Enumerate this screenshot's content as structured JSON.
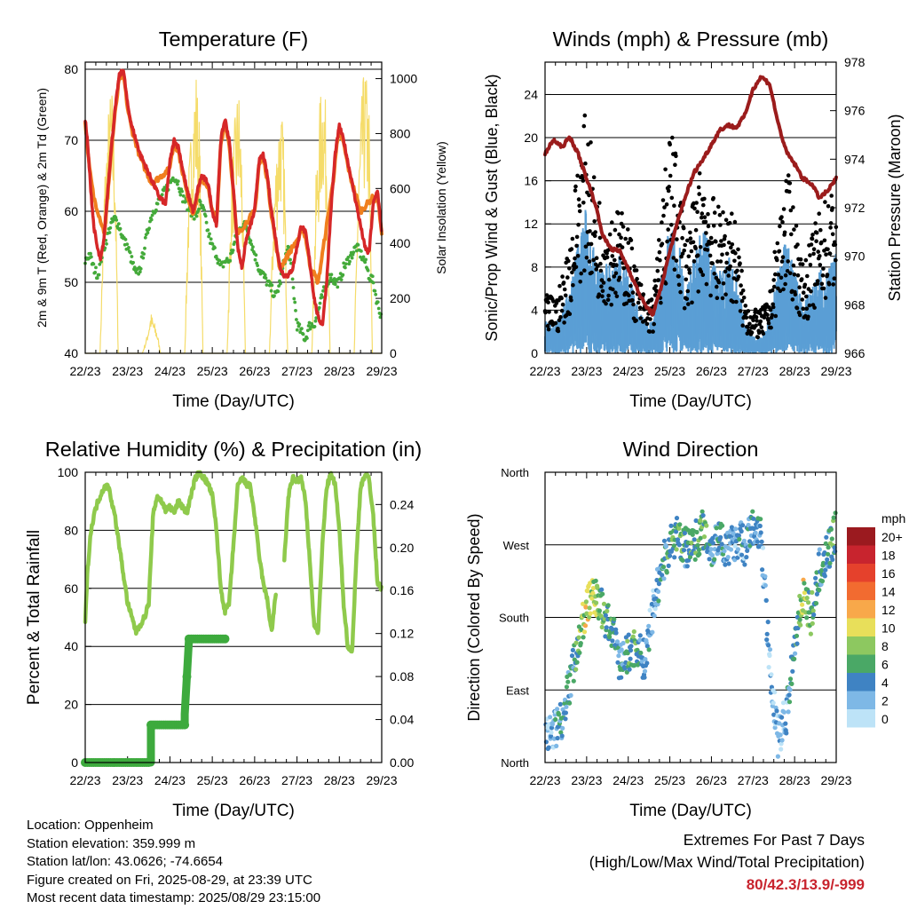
{
  "chart_data": [
    {
      "type": "line",
      "title": "Temperature (F)",
      "xlabel": "Time (Day/UTC)",
      "ylabel": "2m & 9m T (Red, Orange) & 2m Td (Green)",
      "y2label": "Solar Insolation (Yellow)",
      "x_ticks": [
        "22/23",
        "23/23",
        "24/23",
        "25/23",
        "26/23",
        "27/23",
        "28/23",
        "29/23"
      ],
      "xlim": [
        0,
        7
      ],
      "ylim": [
        40,
        81
      ],
      "y_ticks": [
        40,
        50,
        60,
        70,
        80
      ],
      "y2lim": [
        0,
        1060
      ],
      "y2_ticks": [
        0,
        200,
        400,
        600,
        800,
        1000
      ],
      "grid": "horizontal",
      "colors": {
        "t2m": "#d62728",
        "t9m": "#f07f1e",
        "td": "#44aa3a",
        "solar": "#f5dc6a"
      },
      "series": [
        {
          "axis": "left",
          "values_x": [
            0,
            0.05,
            0.12,
            0.2,
            0.28,
            0.36,
            0.44,
            0.52,
            0.6,
            0.7,
            0.8,
            0.9,
            1.0,
            1.1,
            1.2,
            1.3,
            1.45,
            1.6,
            1.75,
            1.9,
            2.0,
            2.1,
            2.2,
            2.3,
            2.4,
            2.5,
            2.55,
            2.6,
            2.65,
            2.75,
            2.9,
            3.0,
            3.1,
            3.2,
            3.3,
            3.4,
            3.5,
            3.6,
            3.7,
            3.8,
            3.9,
            4.0,
            4.1,
            4.2,
            4.3,
            4.4,
            4.5,
            4.6,
            4.7,
            4.8,
            4.9,
            5.0,
            5.1,
            5.2,
            5.3,
            5.4,
            5.5,
            5.6,
            5.7,
            5.8,
            5.9,
            6.0,
            6.1,
            6.2,
            6.3,
            6.4,
            6.5,
            6.6,
            6.7,
            6.8,
            6.9,
            7.0
          ],
          "values": [
            73,
            70,
            64,
            58,
            55,
            53,
            56,
            62,
            68,
            74,
            79,
            80,
            75,
            72,
            70,
            68,
            66,
            64,
            62,
            61,
            67,
            70,
            69,
            66,
            63,
            61,
            60,
            61,
            63,
            65,
            64,
            60,
            58,
            70,
            73,
            70,
            63,
            55,
            52,
            56,
            58,
            60,
            67,
            68,
            65,
            60,
            56,
            52,
            51,
            51,
            52,
            55,
            58,
            57,
            53,
            48,
            45,
            44,
            50,
            60,
            68,
            72,
            70,
            67,
            64,
            61,
            58,
            55,
            54,
            61,
            63,
            57
          ]
        },
        {
          "axis": "left",
          "values_x": [
            0,
            0.1,
            0.2,
            0.3,
            0.4,
            0.5,
            0.6,
            1.6,
            2.0,
            2.5,
            3.0,
            3.5,
            4.0,
            4.5,
            5.0,
            5.5,
            6.0,
            6.5,
            6.8,
            7.0
          ],
          "values": [
            72,
            66,
            62,
            60,
            58,
            56,
            62,
            64,
            66,
            60,
            60,
            56,
            60,
            51,
            56,
            50,
            70,
            60,
            62,
            57
          ]
        },
        {
          "axis": "left",
          "values_x": [
            0,
            0.1,
            0.2,
            0.3,
            0.4,
            0.5,
            0.6,
            0.7,
            0.8,
            0.9,
            1.0,
            1.1,
            1.2,
            1.3,
            1.4,
            1.5,
            1.6,
            1.7,
            1.8,
            1.9,
            2.0,
            2.1,
            2.2,
            2.3,
            2.4,
            2.5,
            2.6,
            2.7,
            2.8,
            2.9,
            3.0,
            3.1,
            3.2,
            3.3,
            3.4,
            3.5,
            3.6,
            3.7,
            3.8,
            3.9,
            4.0,
            4.1,
            4.2,
            4.3,
            4.4,
            4.5,
            4.6,
            4.7,
            4.8,
            4.9,
            5.0,
            5.1,
            5.2,
            5.3,
            5.4,
            5.5,
            5.6,
            5.7,
            5.8,
            5.9,
            6.0,
            6.1,
            6.2,
            6.3,
            6.4,
            6.5,
            6.6,
            6.7,
            6.8,
            6.9,
            7.0
          ],
          "values": [
            53,
            54,
            52,
            51,
            54,
            56,
            58,
            59,
            58,
            56,
            55,
            53,
            51,
            52,
            55,
            58,
            60,
            61,
            62,
            63,
            64,
            65,
            64,
            62,
            61,
            60,
            59,
            61,
            60,
            57,
            55,
            54,
            52,
            53,
            53,
            55,
            57,
            58,
            58,
            56,
            54,
            52,
            51,
            50,
            49,
            48,
            50,
            53,
            55,
            50,
            44,
            43,
            42,
            44,
            44,
            46,
            48,
            50,
            51,
            50,
            50,
            52,
            53,
            54,
            55,
            54,
            53,
            51,
            50,
            47,
            45
          ]
        },
        {
          "axis": "right",
          "values_x": [
            0,
            0.35,
            0.45,
            0.55,
            0.62,
            0.7,
            0.78,
            1.0,
            1.35,
            1.45,
            1.55,
            1.62,
            1.7,
            1.78,
            2.0,
            2.35,
            2.45,
            2.55,
            2.62,
            2.7,
            2.78,
            3.0,
            3.35,
            3.45,
            3.55,
            3.62,
            3.7,
            3.78,
            4.0,
            4.35,
            4.45,
            4.55,
            4.62,
            4.7,
            4.78,
            5.0,
            5.35,
            5.45,
            5.55,
            5.62,
            5.7,
            5.78,
            6.0,
            6.35,
            6.45,
            6.55,
            6.62,
            6.7,
            6.78,
            7.0
          ],
          "values": [
            0,
            0,
            650,
            900,
            1000,
            800,
            0,
            0,
            0,
            60,
            150,
            120,
            80,
            0,
            0,
            0,
            700,
            950,
            1050,
            850,
            0,
            0,
            0,
            650,
            900,
            1000,
            750,
            0,
            0,
            0,
            600,
            850,
            950,
            750,
            0,
            0,
            0,
            650,
            950,
            1050,
            850,
            0,
            0,
            0,
            700,
            1000,
            1050,
            900,
            0,
            0
          ]
        }
      ]
    },
    {
      "type": "scatter",
      "title": "Winds (mph) & Pressure (mb)",
      "xlabel": "Time (Day/UTC)",
      "ylabel": "Sonic/Prop Wind & Gust (Blue, Black)",
      "y2label": "Station Pressure (Maroon)",
      "x_ticks": [
        "22/23",
        "23/23",
        "24/23",
        "25/23",
        "26/23",
        "27/23",
        "28/23",
        "29/23"
      ],
      "xlim": [
        0,
        7
      ],
      "ylim": [
        0,
        27
      ],
      "y_ticks": [
        0,
        4,
        8,
        12,
        16,
        20,
        24
      ],
      "y2lim": [
        966,
        978
      ],
      "y2_ticks": [
        966,
        968,
        970,
        972,
        974,
        976,
        978
      ],
      "grid": "horizontal",
      "colors": {
        "wind": "#5b9fd5",
        "gust": "#000000",
        "pressure": "#9b1c1c"
      },
      "wind_profile": {
        "x": [
          0,
          0.3,
          0.6,
          0.8,
          1.0,
          1.2,
          1.4,
          1.6,
          1.8,
          2.0,
          2.2,
          2.4,
          2.6,
          2.8,
          3.0,
          3.2,
          3.4,
          3.6,
          3.8,
          4.0,
          4.2,
          4.4,
          4.6,
          4.8,
          5.0,
          5.2,
          5.4,
          5.6,
          5.8,
          6.0,
          6.2,
          6.4,
          6.6,
          6.8,
          7.0
        ],
        "values": [
          2,
          2,
          4,
          7,
          9,
          6,
          5,
          6,
          6,
          5,
          3,
          2,
          2,
          5,
          8,
          7,
          4,
          6,
          8,
          6,
          5,
          6,
          5,
          2,
          1,
          1,
          2,
          5,
          7,
          5,
          3,
          4,
          5,
          5,
          6
        ]
      },
      "gust_profile": {
        "x": [
          0,
          0.3,
          0.6,
          0.8,
          1.0,
          1.2,
          1.4,
          1.6,
          1.8,
          2.0,
          2.2,
          2.4,
          2.6,
          2.8,
          3.0,
          3.2,
          3.4,
          3.6,
          3.8,
          4.0,
          4.2,
          4.4,
          4.6,
          4.8,
          5.0,
          5.2,
          5.4,
          5.6,
          5.8,
          6.0,
          6.2,
          6.4,
          6.6,
          6.8,
          7.0
        ],
        "values": [
          4,
          4,
          8,
          14,
          17,
          12,
          10,
          10,
          10,
          9,
          6,
          4,
          4,
          10,
          16,
          13,
          8,
          11,
          14,
          11,
          10,
          11,
          9,
          4,
          3,
          3,
          4,
          9,
          13,
          10,
          6,
          8,
          10,
          11,
          12
        ]
      },
      "pressure": {
        "x": [
          0,
          0.2,
          0.4,
          0.6,
          0.8,
          1.0,
          1.2,
          1.4,
          1.6,
          1.8,
          2.0,
          2.2,
          2.4,
          2.6,
          2.8,
          3.0,
          3.2,
          3.4,
          3.6,
          3.8,
          4.0,
          4.2,
          4.4,
          4.6,
          4.8,
          5.0,
          5.2,
          5.4,
          5.6,
          5.8,
          6.0,
          6.2,
          6.4,
          6.6,
          6.8,
          7.0
        ],
        "values": [
          974.2,
          974.8,
          974.5,
          974.9,
          974.2,
          973.2,
          972.2,
          970.8,
          970.3,
          970.2,
          969.5,
          968.7,
          968.0,
          967.6,
          968.8,
          970.2,
          971.5,
          972.6,
          973.5,
          974.0,
          974.6,
          975.2,
          975.4,
          975.3,
          975.8,
          976.9,
          977.4,
          977.1,
          975.5,
          974.3,
          973.8,
          973.2,
          973.0,
          972.4,
          972.7,
          973.2
        ]
      },
      "series": []
    },
    {
      "type": "line",
      "title": "Relative Humidity (%) & Precipitation (in)",
      "xlabel": "Time (Day/UTC)",
      "ylabel": "Percent & Total Rainfall",
      "x_ticks": [
        "22/23",
        "23/23",
        "24/23",
        "25/23",
        "26/23",
        "27/23",
        "28/23",
        "29/23"
      ],
      "xlim": [
        0,
        7
      ],
      "ylim": [
        0,
        100
      ],
      "y_ticks": [
        0,
        20,
        40,
        60,
        80,
        100
      ],
      "y2lim": [
        0,
        0.27
      ],
      "y2_ticks": [
        "0.00",
        "0.04",
        "0.08",
        "0.12",
        "0.16",
        "0.20",
        "0.24"
      ],
      "grid": "horizontal",
      "colors": {
        "rh": "#8fca4c",
        "precip": "#3daa3d"
      },
      "series": [
        {
          "axis": "left",
          "values_x": [
            0,
            0.05,
            0.12,
            0.2,
            0.3,
            0.45,
            0.55,
            0.7,
            0.85,
            1.0,
            1.2,
            1.4,
            1.5,
            1.55,
            1.6,
            1.7,
            1.8,
            1.9,
            2.0,
            2.1,
            2.2,
            2.3,
            2.4,
            2.5,
            2.6,
            2.7,
            2.8,
            2.9,
            3.0,
            3.1,
            3.2,
            3.3,
            3.4,
            3.5,
            3.6,
            3.7,
            3.8,
            3.9,
            4.0,
            4.1,
            4.2,
            4.3,
            4.4,
            4.5
          ],
          "values": [
            48,
            65,
            78,
            85,
            90,
            95,
            95,
            85,
            70,
            55,
            45,
            50,
            55,
            70,
            85,
            92,
            90,
            87,
            88,
            86,
            90,
            88,
            86,
            92,
            98,
            100,
            98,
            96,
            92,
            80,
            60,
            52,
            55,
            75,
            95,
            98,
            96,
            95,
            85,
            72,
            62,
            56,
            45,
            58
          ]
        },
        {
          "axis": "left",
          "values_x": [
            4.7,
            4.8,
            4.9,
            5.0,
            5.1,
            5.2,
            5.3,
            5.4,
            5.5,
            5.6,
            5.7,
            5.8,
            5.9,
            6.0,
            6.1,
            6.2,
            6.3,
            6.4,
            6.5,
            6.6,
            6.7,
            6.8,
            6.9,
            7.0
          ],
          "values": [
            70,
            92,
            98,
            97,
            98,
            90,
            70,
            48,
            45,
            75,
            95,
            99,
            96,
            80,
            55,
            40,
            38,
            70,
            95,
            99,
            98,
            85,
            62,
            60
          ]
        },
        {
          "axis": "right",
          "step": true,
          "values_x": [
            0,
            1.55,
            1.55,
            2.35,
            2.35,
            2.4,
            2.45,
            3.3
          ],
          "values": [
            0.0,
            0.0,
            0.035,
            0.035,
            0.045,
            0.08,
            0.115,
            0.115
          ]
        }
      ]
    },
    {
      "type": "scatter",
      "title": "Wind Direction",
      "xlabel": "Time (Day/UTC)",
      "ylabel": "Direction (Colored By Speed)",
      "x_ticks": [
        "22/23",
        "23/23",
        "24/23",
        "25/23",
        "26/23",
        "27/23",
        "28/23",
        "29/23"
      ],
      "xlim": [
        0,
        7
      ],
      "ylim": [
        0,
        360
      ],
      "y_ticks": [
        "North",
        "East",
        "South",
        "West",
        "North"
      ],
      "grid": "horizontal",
      "legend": {
        "title": "mph",
        "labels": [
          "20+",
          "18",
          "16",
          "14",
          "12",
          "10",
          "8",
          "6",
          "4",
          "2",
          "0"
        ],
        "colors": [
          "#9b1a1f",
          "#c8242e",
          "#e5412c",
          "#f26b30",
          "#f8a84a",
          "#e8df5a",
          "#8dc860",
          "#4aa866",
          "#3f83c3",
          "#7eb8e6",
          "#bde3f7"
        ]
      },
      "direction_profile": {
        "x": [
          0,
          0.2,
          0.4,
          0.6,
          0.8,
          1.0,
          1.2,
          1.4,
          1.6,
          1.8,
          2.0,
          2.2,
          2.4,
          2.6,
          2.8,
          3.0,
          3.2,
          3.4,
          3.6,
          3.8,
          4.0,
          4.2,
          4.4,
          4.6,
          4.8,
          5.0,
          5.2,
          5.4,
          5.6,
          5.8,
          6.0,
          6.2,
          6.4,
          6.6,
          6.8,
          7.0
        ],
        "values": [
          30,
          40,
          55,
          100,
          150,
          195,
          210,
          185,
          165,
          125,
          135,
          145,
          125,
          190,
          240,
          270,
          280,
          265,
          275,
          290,
          265,
          285,
          260,
          280,
          270,
          290,
          280,
          120,
          30,
          60,
          150,
          210,
          180,
          240,
          260,
          290
        ],
        "speeds": [
          2,
          3,
          4,
          4,
          6,
          10,
          8,
          6,
          6,
          4,
          5,
          5,
          3,
          3,
          4,
          5,
          6,
          5,
          6,
          6,
          4,
          5,
          3,
          3,
          3,
          4,
          3,
          2,
          2,
          3,
          4,
          9,
          6,
          4,
          5,
          6
        ]
      },
      "series": []
    }
  ],
  "info": {
    "location": "Location: Oppenheim",
    "elevation": "Station elevation: 359.999 m",
    "latlon": "Station lat/lon: 43.0626; -74.6654",
    "created": "Figure created on Fri, 2025-08-29, at 23:39 UTC",
    "recent": "Most recent data timestamp: 2025/08/29 23:15:00"
  },
  "extremes": {
    "title": "Extremes For Past 7 Days",
    "subtitle": "(High/Low/Max Wind/Total Precipitation)",
    "values": "80/42.3/13.9/-999"
  }
}
